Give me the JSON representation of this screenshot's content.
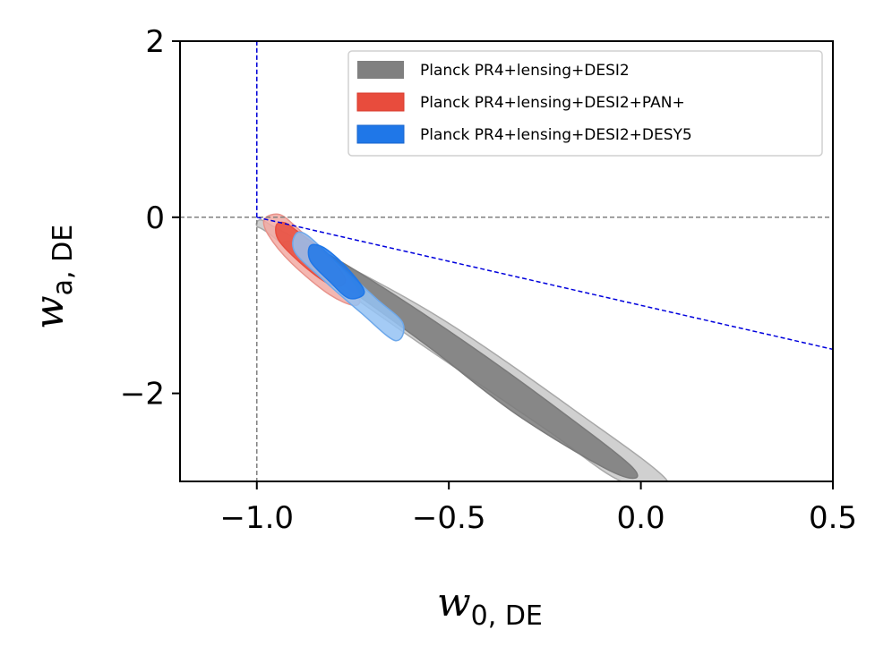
{
  "chart_data": {
    "type": "contour",
    "title": "",
    "xlabel": {
      "main": "w",
      "sub": "0, DE"
    },
    "ylabel": {
      "main": "w",
      "sub": "a, DE"
    },
    "xlim": [
      -1.2,
      0.5
    ],
    "ylim": [
      -3,
      2
    ],
    "xticks": [
      -1.0,
      -0.5,
      0.0,
      0.5
    ],
    "xtick_labels": [
      "−1.0",
      "−0.5",
      "0.0",
      "0.5"
    ],
    "yticks": [
      -2,
      0,
      2
    ],
    "ytick_labels": [
      "−2",
      "0",
      "2"
    ],
    "reference_lines": [
      {
        "name": "w0-equals-minus-one",
        "kind": "vertical",
        "x": -1.0,
        "color": "#808080",
        "style": "dashed"
      },
      {
        "name": "wa-equals-zero",
        "kind": "horizontal",
        "y": 0.0,
        "color": "#808080",
        "style": "dashed"
      },
      {
        "name": "prior-boundary-vertical",
        "kind": "segment",
        "points": [
          [
            -1.0,
            0.0
          ],
          [
            -1.0,
            2.0
          ]
        ],
        "color": "#0000dd",
        "style": "dashed"
      },
      {
        "name": "prior-boundary-diagonal",
        "kind": "segment",
        "points": [
          [
            -1.0,
            0.0
          ],
          [
            0.5,
            -1.5
          ]
        ],
        "color": "#0000dd",
        "style": "dashed"
      }
    ],
    "series": [
      {
        "name": "Planck PR4+lensing+DESI2",
        "color": "#808080",
        "contours": [
          {
            "level": "95%",
            "points": [
              [
                -1.0,
                -0.1
              ],
              [
                -0.97,
                -0.18
              ],
              [
                -0.84,
                -0.62
              ],
              [
                -0.57,
                -1.45
              ],
              [
                -0.25,
                -2.4
              ],
              [
                -0.05,
                -3.0
              ],
              [
                0.07,
                -3.0
              ],
              [
                -0.17,
                -2.2
              ],
              [
                -0.52,
                -1.15
              ],
              [
                -0.84,
                -0.38
              ],
              [
                -0.95,
                -0.12
              ],
              [
                -0.99,
                -0.03
              ]
            ],
            "fill": "#c8c8c8",
            "stroke": "#a8a8a8"
          },
          {
            "level": "68%",
            "points": [
              [
                -0.93,
                -0.28
              ],
              [
                -0.9,
                -0.42
              ],
              [
                -0.75,
                -0.85
              ],
              [
                -0.55,
                -1.48
              ],
              [
                -0.32,
                -2.25
              ],
              [
                -0.07,
                -2.9
              ],
              [
                -0.02,
                -2.85
              ],
              [
                -0.24,
                -2.1
              ],
              [
                -0.47,
                -1.38
              ],
              [
                -0.7,
                -0.72
              ],
              [
                -0.86,
                -0.32
              ]
            ],
            "fill": "#7a7a7a",
            "stroke": "#7a7a7a"
          }
        ]
      },
      {
        "name": "Planck PR4+lensing+DESI2+PAN+",
        "color": "#e84c3d",
        "contours": [
          {
            "level": "95%",
            "points": [
              [
                -0.98,
                -0.02
              ],
              [
                -0.97,
                -0.2
              ],
              [
                -0.91,
                -0.52
              ],
              [
                -0.81,
                -0.88
              ],
              [
                -0.74,
                -1.0
              ],
              [
                -0.74,
                -0.82
              ],
              [
                -0.8,
                -0.5
              ],
              [
                -0.89,
                -0.14
              ],
              [
                -0.94,
                0.03
              ]
            ],
            "fill": "#f2aaa3",
            "stroke": "#e8928a"
          },
          {
            "level": "68%",
            "points": [
              [
                -0.95,
                -0.1
              ],
              [
                -0.94,
                -0.28
              ],
              [
                -0.87,
                -0.58
              ],
              [
                -0.8,
                -0.78
              ],
              [
                -0.77,
                -0.7
              ],
              [
                -0.82,
                -0.42
              ],
              [
                -0.9,
                -0.14
              ],
              [
                -0.93,
                -0.06
              ]
            ],
            "fill": "#e84c3d",
            "stroke": "#e84c3d"
          }
        ]
      },
      {
        "name": "Planck PR4+lensing+DESI2+DESY5",
        "color": "#1f77e8",
        "contours": [
          {
            "level": "95%",
            "points": [
              [
                -0.9,
                -0.2
              ],
              [
                -0.9,
                -0.4
              ],
              [
                -0.83,
                -0.7
              ],
              [
                -0.73,
                -1.08
              ],
              [
                -0.64,
                -1.4
              ],
              [
                -0.62,
                -1.2
              ],
              [
                -0.69,
                -0.92
              ],
              [
                -0.79,
                -0.52
              ],
              [
                -0.87,
                -0.2
              ]
            ],
            "fill": "#94c2f3",
            "stroke": "#6ea8ea"
          },
          {
            "level": "68%",
            "points": [
              [
                -0.86,
                -0.32
              ],
              [
                -0.86,
                -0.5
              ],
              [
                -0.81,
                -0.73
              ],
              [
                -0.76,
                -0.92
              ],
              [
                -0.72,
                -0.85
              ],
              [
                -0.76,
                -0.6
              ],
              [
                -0.82,
                -0.36
              ]
            ],
            "fill": "#1f77e8",
            "stroke": "#1f77e8"
          }
        ]
      }
    ],
    "legend": {
      "position": "top-right",
      "entries": [
        {
          "label": "Planck PR4+lensing+DESI2",
          "color": "#808080"
        },
        {
          "label": "Planck PR4+lensing+DESI2+PAN+",
          "color": "#e84c3d"
        },
        {
          "label": "Planck PR4+lensing+DESI2+DESY5",
          "color": "#1f77e8"
        }
      ]
    }
  }
}
